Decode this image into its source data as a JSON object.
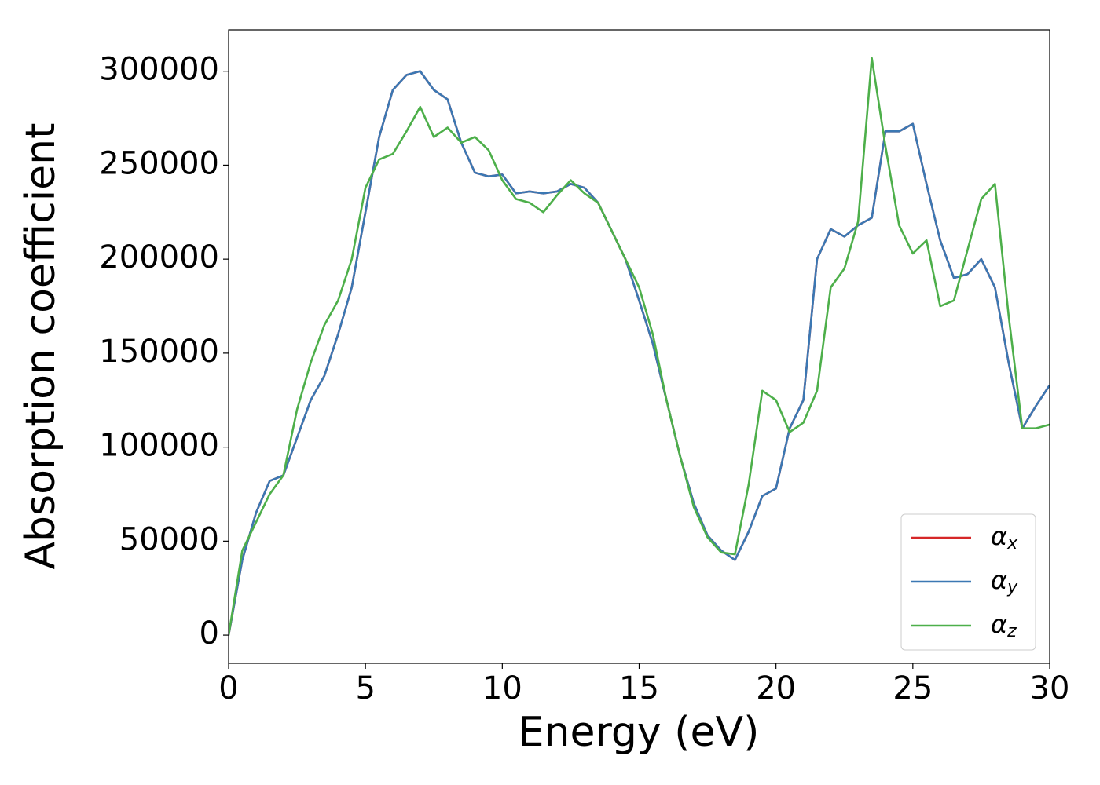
{
  "chart_data": {
    "type": "line",
    "xlabel": "Energy (eV)",
    "ylabel": "Absorption coefficient",
    "x": [
      0,
      0.5,
      1,
      1.5,
      2,
      2.5,
      3,
      3.5,
      4,
      4.5,
      5,
      5.5,
      6,
      6.5,
      7,
      7.5,
      8,
      8.5,
      9,
      9.5,
      10,
      10.5,
      11,
      11.5,
      12,
      12.5,
      13,
      13.5,
      14,
      14.5,
      15,
      15.5,
      16,
      16.5,
      17,
      17.5,
      18,
      18.5,
      19,
      19.5,
      20,
      20.5,
      21,
      21.5,
      22,
      22.5,
      23,
      23.5,
      24,
      24.5,
      25,
      25.5,
      26,
      26.5,
      27,
      27.5,
      28,
      28.5,
      29,
      29.5,
      30
    ],
    "series": [
      {
        "name": "α_x",
        "color": "#d62728",
        "values": [
          0,
          40000,
          65000,
          82000,
          85000,
          105000,
          125000,
          138000,
          160000,
          185000,
          225000,
          265000,
          290000,
          298000,
          300000,
          290000,
          285000,
          262000,
          246000,
          244000,
          245000,
          235000,
          236000,
          235000,
          236000,
          240000,
          238000,
          230000,
          215000,
          200000,
          178000,
          155000,
          125000,
          95000,
          70000,
          53000,
          45000,
          40000,
          55000,
          74000,
          78000,
          110000,
          125000,
          200000,
          216000,
          212000,
          218000,
          222000,
          268000,
          268000,
          272000,
          240000,
          210000,
          190000,
          192000,
          200000,
          185000,
          145000,
          110000,
          122000,
          133000
        ]
      },
      {
        "name": "α_y",
        "color": "#3b78b3",
        "values": [
          0,
          40000,
          65000,
          82000,
          85000,
          105000,
          125000,
          138000,
          160000,
          185000,
          225000,
          265000,
          290000,
          298000,
          300000,
          290000,
          285000,
          262000,
          246000,
          244000,
          245000,
          235000,
          236000,
          235000,
          236000,
          240000,
          238000,
          230000,
          215000,
          200000,
          178000,
          155000,
          125000,
          95000,
          70000,
          53000,
          45000,
          40000,
          55000,
          74000,
          78000,
          110000,
          125000,
          200000,
          216000,
          212000,
          218000,
          222000,
          268000,
          268000,
          272000,
          240000,
          210000,
          190000,
          192000,
          200000,
          185000,
          145000,
          110000,
          122000,
          133000
        ]
      },
      {
        "name": "α_z",
        "color": "#4daf4a",
        "values": [
          0,
          45000,
          60000,
          75000,
          85000,
          120000,
          145000,
          165000,
          178000,
          200000,
          238000,
          253000,
          256000,
          268000,
          281000,
          265000,
          270000,
          262000,
          265000,
          258000,
          242000,
          232000,
          230000,
          225000,
          234000,
          242000,
          235000,
          230000,
          215000,
          200000,
          185000,
          160000,
          125000,
          95000,
          68000,
          52000,
          44000,
          43000,
          80000,
          130000,
          125000,
          108000,
          113000,
          130000,
          185000,
          195000,
          220000,
          307000,
          260000,
          218000,
          203000,
          210000,
          175000,
          178000,
          205000,
          232000,
          240000,
          170000,
          110000,
          110000,
          112000
        ]
      }
    ],
    "xlim": [
      0,
      30
    ],
    "xticks": [
      0,
      5,
      10,
      15,
      20,
      25,
      30
    ],
    "ylim": [
      -15000,
      322000
    ],
    "yticks": [
      0,
      50000,
      100000,
      150000,
      200000,
      250000,
      300000
    ],
    "grid": false,
    "legend": "lower right"
  }
}
